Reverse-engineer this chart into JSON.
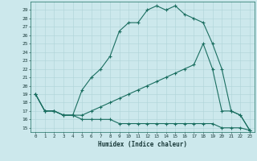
{
  "xlabel": "Humidex (Indice chaleur)",
  "bg_color": "#cce8ec",
  "line_color": "#1a6e60",
  "grid_color": "#aed4d8",
  "xlim": [
    -0.5,
    23.5
  ],
  "ylim": [
    14.5,
    30.0
  ],
  "xticks": [
    0,
    1,
    2,
    3,
    4,
    5,
    6,
    7,
    8,
    9,
    10,
    11,
    12,
    13,
    14,
    15,
    16,
    17,
    18,
    19,
    20,
    21,
    22,
    23
  ],
  "yticks": [
    15,
    16,
    17,
    18,
    19,
    20,
    21,
    22,
    23,
    24,
    25,
    26,
    27,
    28,
    29
  ],
  "curve1_x": [
    0,
    1,
    2,
    3,
    4,
    5,
    6,
    7,
    8,
    9,
    10,
    11,
    12,
    13,
    14,
    15,
    16,
    17,
    18,
    19,
    20,
    21,
    22,
    23
  ],
  "curve1_y": [
    19,
    17,
    17,
    16.5,
    16.5,
    19.5,
    21,
    22,
    23.5,
    26.5,
    27.5,
    27.5,
    29.0,
    29.5,
    29.0,
    29.5,
    28.5,
    28.0,
    27.5,
    25.0,
    22.0,
    17.0,
    16.5,
    14.7
  ],
  "curve2_x": [
    0,
    1,
    2,
    3,
    4,
    5,
    6,
    7,
    8,
    9,
    10,
    11,
    12,
    13,
    14,
    15,
    16,
    17,
    18,
    19,
    20,
    21,
    22,
    23
  ],
  "curve2_y": [
    19,
    17,
    17,
    16.5,
    16.5,
    16.5,
    17.0,
    17.5,
    18.0,
    18.5,
    19.0,
    19.5,
    20.0,
    20.5,
    21.0,
    21.5,
    22.0,
    22.5,
    25.0,
    22.0,
    17.0,
    17.0,
    16.5,
    14.7
  ],
  "curve3_x": [
    0,
    1,
    2,
    3,
    4,
    5,
    6,
    7,
    8,
    9,
    10,
    11,
    12,
    13,
    14,
    15,
    16,
    17,
    18,
    19,
    20,
    21,
    22,
    23
  ],
  "curve3_y": [
    19,
    17,
    17,
    16.5,
    16.5,
    16.0,
    16.0,
    16.0,
    16.0,
    15.5,
    15.5,
    15.5,
    15.5,
    15.5,
    15.5,
    15.5,
    15.5,
    15.5,
    15.5,
    15.5,
    15.0,
    15.0,
    15.0,
    14.7
  ]
}
